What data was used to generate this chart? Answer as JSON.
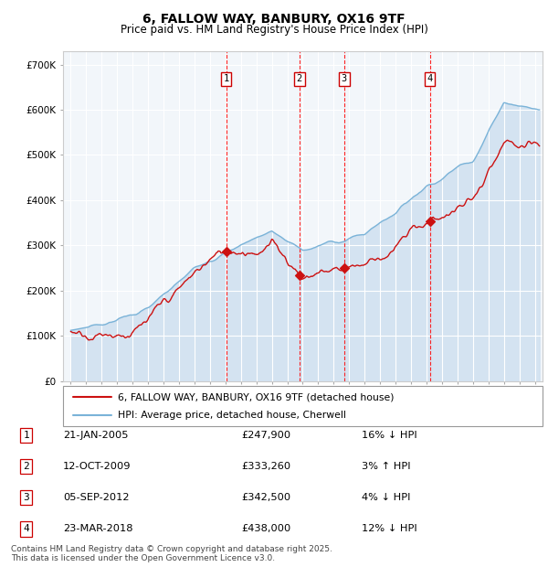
{
  "title": "6, FALLOW WAY, BANBURY, OX16 9TF",
  "subtitle": "Price paid vs. HM Land Registry's House Price Index (HPI)",
  "footer": "Contains HM Land Registry data © Crown copyright and database right 2025.\nThis data is licensed under the Open Government Licence v3.0.",
  "legend_line1": "6, FALLOW WAY, BANBURY, OX16 9TF (detached house)",
  "legend_line2": "HPI: Average price, detached house, Cherwell",
  "hpi_color": "#7ab3d8",
  "hpi_fill_color": "#cfe0f0",
  "price_color": "#cc1111",
  "chart_bg": "#f0f4f8",
  "sale_points": [
    {
      "num": 1,
      "date": "21-JAN-2005",
      "price": 247900,
      "pct": "16%",
      "dir": "↓",
      "x_year": 2005.05
    },
    {
      "num": 2,
      "date": "12-OCT-2009",
      "price": 333260,
      "pct": "3%",
      "dir": "↑",
      "x_year": 2009.78
    },
    {
      "num": 3,
      "date": "05-SEP-2012",
      "price": 342500,
      "pct": "4%",
      "dir": "↓",
      "x_year": 2012.68
    },
    {
      "num": 4,
      "date": "23-MAR-2018",
      "price": 438000,
      "pct": "12%",
      "dir": "↓",
      "x_year": 2018.22
    }
  ],
  "ylim": [
    0,
    730000
  ],
  "xlim_start": 1994.5,
  "xlim_end": 2025.5,
  "yticks": [
    0,
    100000,
    200000,
    300000,
    400000,
    500000,
    600000,
    700000
  ],
  "ytick_labels": [
    "£0",
    "£100K",
    "£200K",
    "£300K",
    "£400K",
    "£500K",
    "£600K",
    "£700K"
  ],
  "xticks": [
    1995,
    1996,
    1997,
    1998,
    1999,
    2000,
    2001,
    2002,
    2003,
    2004,
    2005,
    2006,
    2007,
    2008,
    2009,
    2010,
    2011,
    2012,
    2013,
    2014,
    2015,
    2016,
    2017,
    2018,
    2019,
    2020,
    2021,
    2022,
    2023,
    2024,
    2025
  ]
}
